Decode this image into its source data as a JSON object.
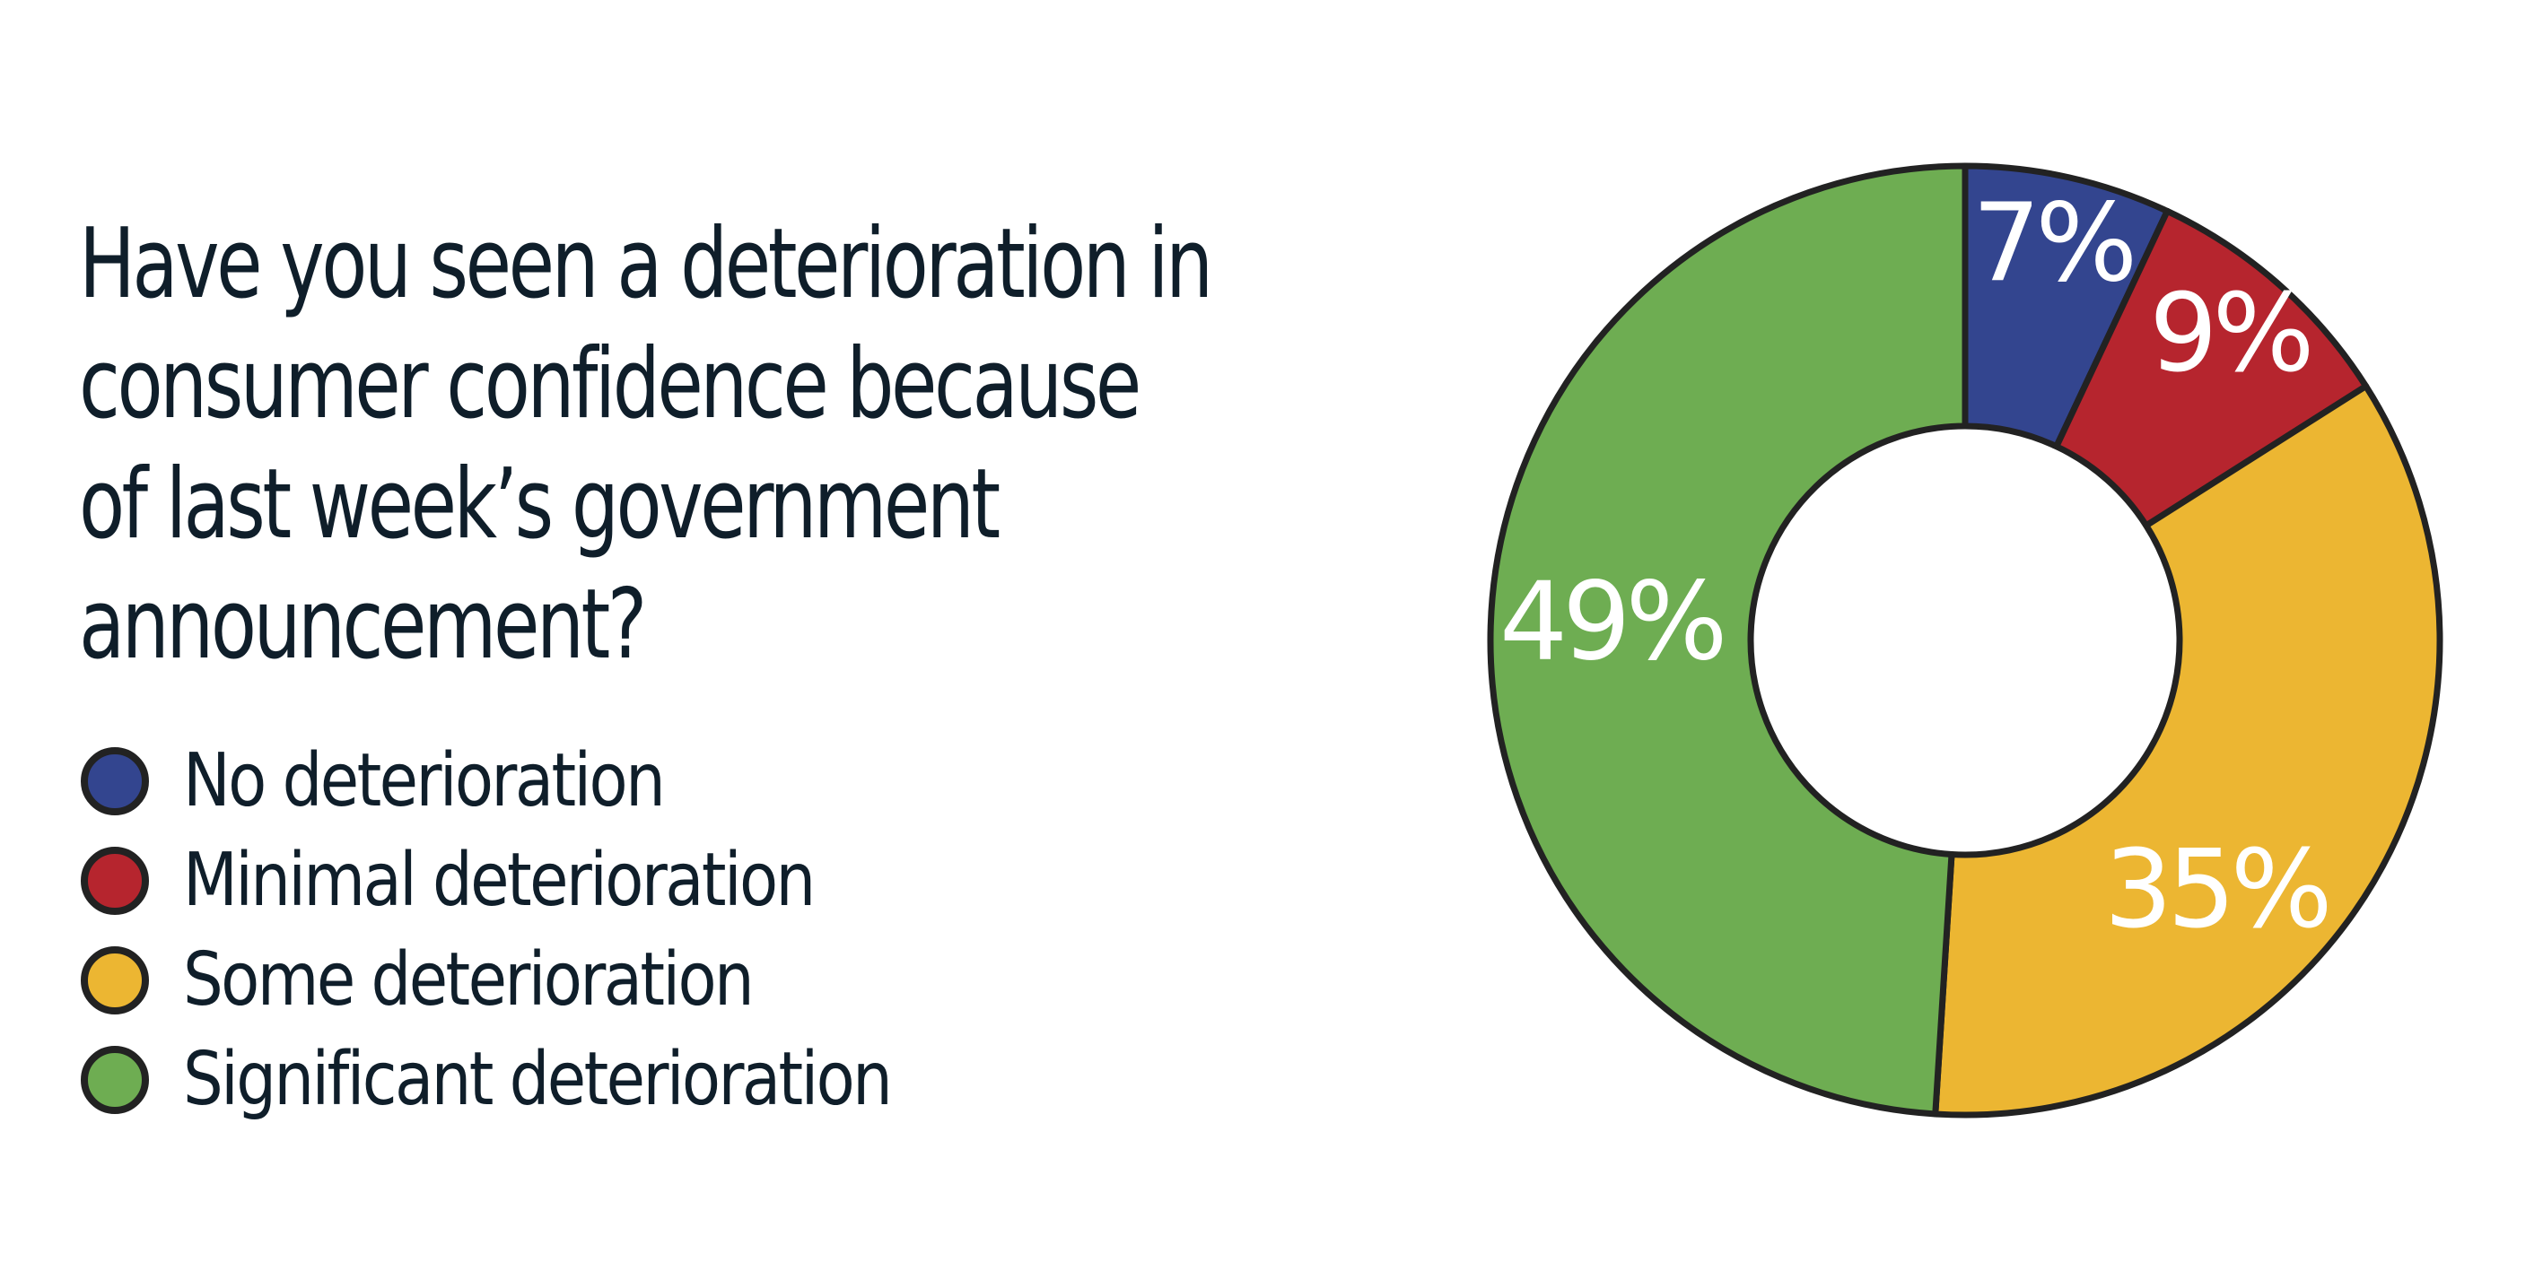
{
  "title": "Have you seen a deterioration in consumer confidence because of last week’s government announcement?",
  "title_lines": [
    "Have you seen a deterioration in",
    "consumer confidence because",
    "of last week’s government",
    "announcement?"
  ],
  "legend": [
    {
      "label": "No deterioration",
      "color": "#33458f"
    },
    {
      "label": "Minimal deterioration",
      "color": "#b6252e"
    },
    {
      "label": "Some deterioration",
      "color": "#ecb632"
    },
    {
      "label": "Significant deterioration",
      "color": "#6ead52"
    }
  ],
  "chart_data": {
    "type": "pie",
    "variant": "donut",
    "title": "Have you seen a deterioration in consumer confidence because of last week’s government announcement?",
    "categories": [
      "No deterioration",
      "Minimal deterioration",
      "Some deterioration",
      "Significant deterioration"
    ],
    "values": [
      7,
      9,
      35,
      49
    ],
    "labels": [
      "7%",
      "9%",
      "35%",
      "49%"
    ],
    "colors": [
      "#33458f",
      "#b6252e",
      "#ecb632",
      "#6ead52"
    ],
    "start_angle": "12 o'clock",
    "direction": "clockwise",
    "legend_position": "left"
  }
}
